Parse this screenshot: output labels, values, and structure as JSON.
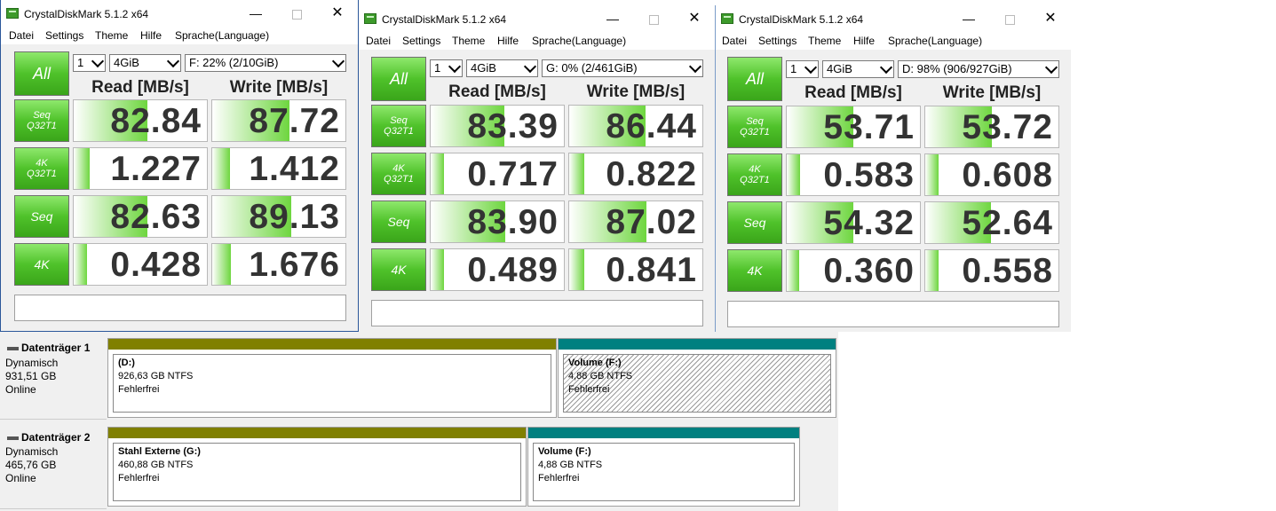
{
  "windows": [
    {
      "title": "CrystalDiskMark 5.1.2 x64",
      "menu": [
        "Datei",
        "Settings",
        "Theme",
        "Hilfe",
        "Sprache(Language)"
      ],
      "all_label": "All",
      "count": "1",
      "size": "4GiB",
      "drive": "F: 22% (2/10GiB)",
      "read_header": "Read [MB/s]",
      "write_header": "Write [MB/s]",
      "rows": [
        {
          "l1": "Seq",
          "l2": "Q32T1",
          "read": "82.84",
          "write": "87.72",
          "read_fill": 0.55,
          "write_fill": 0.58
        },
        {
          "l1": "4K",
          "l2": "Q32T1",
          "read": "1.227",
          "write": "1.412",
          "read_fill": 0.12,
          "write_fill": 0.13
        },
        {
          "l1": "Seq",
          "l2": "",
          "read": "82.63",
          "write": "89.13",
          "read_fill": 0.55,
          "write_fill": 0.59
        },
        {
          "l1": "4K",
          "l2": "",
          "read": "0.428",
          "write": "1.676",
          "read_fill": 0.1,
          "write_fill": 0.14
        }
      ]
    },
    {
      "title": "CrystalDiskMark 5.1.2 x64",
      "menu": [
        "Datei",
        "Settings",
        "Theme",
        "Hilfe",
        "Sprache(Language)"
      ],
      "all_label": "All",
      "count": "1",
      "size": "4GiB",
      "drive": "G: 0% (2/461GiB)",
      "read_header": "Read [MB/s]",
      "write_header": "Write [MB/s]",
      "rows": [
        {
          "l1": "Seq",
          "l2": "Q32T1",
          "read": "83.39",
          "write": "86.44",
          "read_fill": 0.55,
          "write_fill": 0.57
        },
        {
          "l1": "4K",
          "l2": "Q32T1",
          "read": "0.717",
          "write": "0.822",
          "read_fill": 0.1,
          "write_fill": 0.11
        },
        {
          "l1": "Seq",
          "l2": "",
          "read": "83.90",
          "write": "87.02",
          "read_fill": 0.56,
          "write_fill": 0.58
        },
        {
          "l1": "4K",
          "l2": "",
          "read": "0.489",
          "write": "0.841",
          "read_fill": 0.1,
          "write_fill": 0.11
        }
      ]
    },
    {
      "title": "CrystalDiskMark 5.1.2 x64",
      "menu": [
        "Datei",
        "Settings",
        "Theme",
        "Hilfe",
        "Sprache(Language)"
      ],
      "all_label": "All",
      "count": "1",
      "size": "4GiB",
      "drive": "D: 98% (906/927GiB)",
      "read_header": "Read [MB/s]",
      "write_header": "Write [MB/s]",
      "rows": [
        {
          "l1": "Seq",
          "l2": "Q32T1",
          "read": "53.71",
          "write": "53.72",
          "read_fill": 0.5,
          "write_fill": 0.5
        },
        {
          "l1": "4K",
          "l2": "Q32T1",
          "read": "0.583",
          "write": "0.608",
          "read_fill": 0.1,
          "write_fill": 0.1
        },
        {
          "l1": "Seq",
          "l2": "",
          "read": "54.32",
          "write": "52.64",
          "read_fill": 0.5,
          "write_fill": 0.49
        },
        {
          "l1": "4K",
          "l2": "",
          "read": "0.360",
          "write": "0.558",
          "read_fill": 0.09,
          "write_fill": 0.1
        }
      ]
    }
  ],
  "disks": [
    {
      "name": "Datenträger 1",
      "type": "Dynamisch",
      "size": "931,51 GB",
      "status": "Online",
      "partitions": [
        {
          "name": "(D:)",
          "fs": "926,63 GB NTFS",
          "health": "Fehlerfrei",
          "color": "#808000",
          "hatched": false
        },
        {
          "name": "Volume  (F:)",
          "fs": "4,88 GB NTFS",
          "health": "Fehlerfrei",
          "color": "#008080",
          "hatched": true
        }
      ]
    },
    {
      "name": "Datenträger 2",
      "type": "Dynamisch",
      "size": "465,76 GB",
      "status": "Online",
      "partitions": [
        {
          "name": "Stahl Externe  (G:)",
          "fs": "460,88 GB NTFS",
          "health": "Fehlerfrei",
          "color": "#808000",
          "hatched": false
        },
        {
          "name": "Volume  (F:)",
          "fs": "4,88 GB NTFS",
          "health": "Fehlerfrei",
          "color": "#008080",
          "hatched": false
        }
      ]
    }
  ]
}
